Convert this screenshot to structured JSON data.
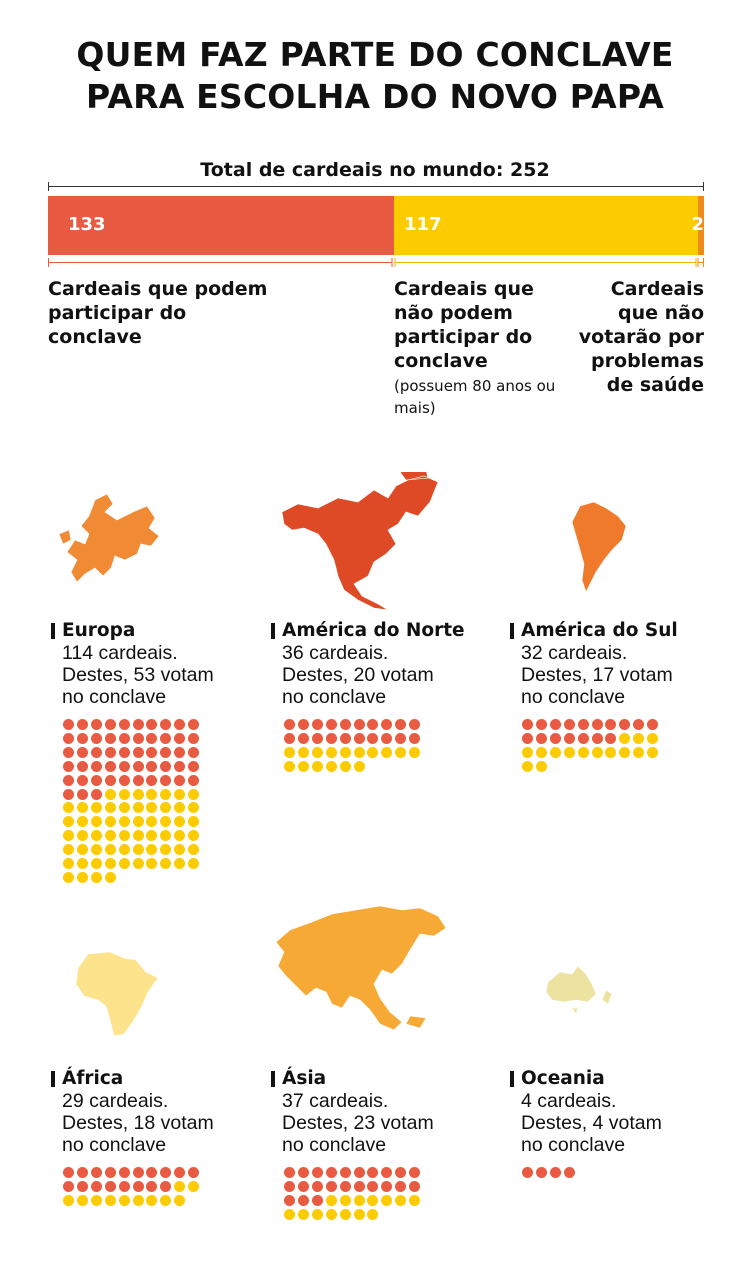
{
  "title_line1": "QUEM FAZ PARTE DO CONCLAVE",
  "title_line2": "PARA ESCOLHA DO NOVO PAPA",
  "total_label": "Total de cardeais no mundo: 252",
  "colors": {
    "voters": "#e85a42",
    "non_voters": "#fccc00",
    "health": "#f08a1a",
    "map_europa": "#f08a35",
    "map_america_norte": "#de4a25",
    "map_america_sul": "#f07a2c",
    "map_africa": "#fde38c",
    "map_asia": "#f7a935",
    "map_oceania": "#ede3a0"
  },
  "chart_data": [
    {
      "type": "bar",
      "title": "Total de cardeais no mundo: 252",
      "stacked": true,
      "total": 252,
      "series": [
        {
          "name": "Cardeais que podem participar do conclave",
          "values": [
            133
          ],
          "label": "133"
        },
        {
          "name": "Cardeais que não podem participar do conclave",
          "values": [
            117
          ],
          "label": "117"
        },
        {
          "name": "Cardeais que não votarão por problemas de saúde",
          "values": [
            2
          ],
          "label": "2"
        }
      ]
    },
    {
      "type": "scatter",
      "subtype": "dot-matrix",
      "regions": [
        {
          "name": "Europa",
          "total": 114,
          "voters": 53
        },
        {
          "name": "América do Norte",
          "total": 36,
          "voters": 20
        },
        {
          "name": "América do Sul",
          "total": 32,
          "voters": 17
        },
        {
          "name": "África",
          "total": 29,
          "voters": 18
        },
        {
          "name": "Ásia",
          "total": 37,
          "voters": 23
        },
        {
          "name": "Oceania",
          "total": 4,
          "voters": 4
        }
      ]
    }
  ],
  "categories": {
    "voters_label": "Cardeais que podem participar do conclave",
    "non_voters_label": "Cardeais que não podem participar do conclave",
    "non_voters_note": "(possuem 80 anos ou mais)",
    "health_label": "Cardeais que não votarão por problemas de saúde"
  },
  "regions": [
    {
      "name": "Europa",
      "line1": "114 cardeais.",
      "line2": "Destes, 53 votam",
      "line3": "no conclave"
    },
    {
      "name": "América do Norte",
      "line1": "36 cardeais.",
      "line2": "Destes, 20 votam",
      "line3": "no conclave"
    },
    {
      "name": "América do Sul",
      "line1": "32 cardeais.",
      "line2": "Destes, 17 votam",
      "line3": "no conclave"
    },
    {
      "name": "África",
      "line1": "29 cardeais.",
      "line2": "Destes, 18 votam",
      "line3": "no conclave"
    },
    {
      "name": "Ásia",
      "line1": "37 cardeais.",
      "line2": "Destes, 23 votam",
      "line3": "no conclave"
    },
    {
      "name": "Oceania",
      "line1": "4 cardeais.",
      "line2": "Destes, 4 votam",
      "line3": "no conclave"
    }
  ]
}
